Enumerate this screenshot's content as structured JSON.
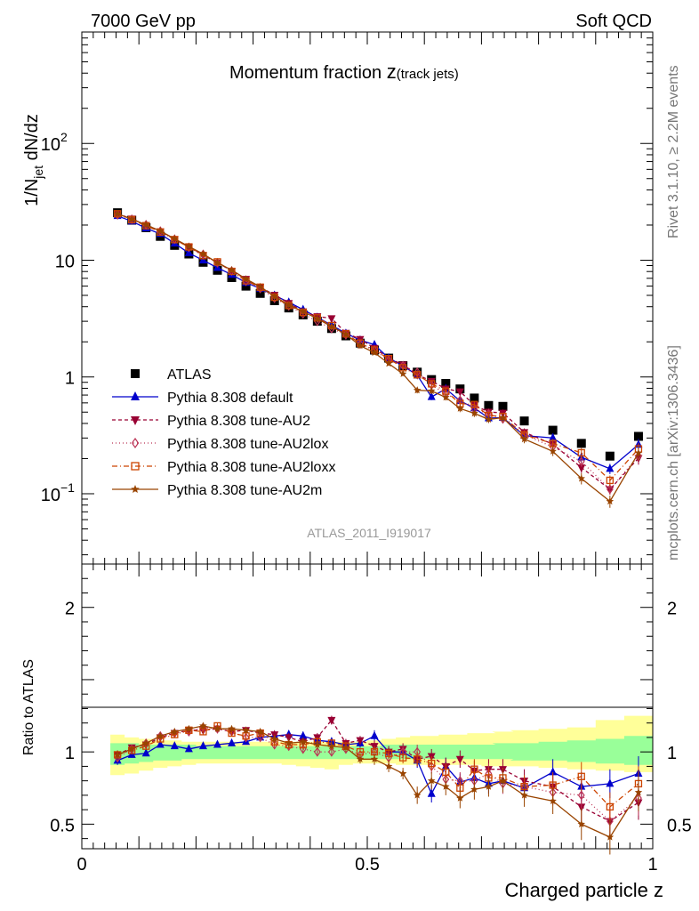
{
  "header": {
    "left": "7000 GeV pp",
    "right": "Soft QCD"
  },
  "side_text": {
    "rivet": "Rivet 3.1.10, ≥ 2.2M events",
    "mcplots": "mcplots.cern.ch [arXiv:1306.3436]"
  },
  "chart_data": {
    "type": "line",
    "title": "Momentum fraction z(track jets)",
    "title_main": "Momentum fraction ",
    "title_z": "z",
    "title_sub": "(track jets)",
    "analysis_id": "ATLAS_2011_I919017",
    "ylabel": {
      "base": "1/N",
      "sub": "jet",
      "rest": " dN/dz"
    },
    "xlabel": "Charged particle z",
    "ratio_ylabel": "Ratio to ATLAS",
    "top_ylim": [
      0.025,
      900
    ],
    "top_yscale": "log",
    "ratio_ylim": [
      0.33,
      2.3
    ],
    "xlim": [
      0,
      1
    ],
    "x_ticks": [
      {
        "v": 0,
        "t": "0"
      },
      {
        "v": 0.5,
        "t": "0.5"
      },
      {
        "v": 1,
        "t": "1"
      }
    ],
    "top_y_ticks": [
      {
        "v": 0.1,
        "t": "10",
        "sup": "−1"
      },
      {
        "v": 1,
        "t": "1",
        "sup": ""
      },
      {
        "v": 10,
        "t": "10",
        "sup": ""
      },
      {
        "v": 100,
        "t": "10",
        "sup": "2"
      }
    ],
    "ratio_y_ticks": [
      {
        "v": 0.5,
        "t": "0.5"
      },
      {
        "v": 1,
        "t": "1"
      },
      {
        "v": 2,
        "t": "2"
      }
    ],
    "legend_position": "lower-left",
    "x": [
      0.0625,
      0.0875,
      0.1125,
      0.1375,
      0.1625,
      0.1875,
      0.2125,
      0.2375,
      0.2625,
      0.2875,
      0.3125,
      0.3375,
      0.3625,
      0.3875,
      0.4125,
      0.4375,
      0.4625,
      0.4875,
      0.5125,
      0.5375,
      0.5625,
      0.5875,
      0.6125,
      0.6375,
      0.6625,
      0.6875,
      0.7125,
      0.7375,
      0.775,
      0.825,
      0.875,
      0.925,
      0.975
    ],
    "band_edges": [
      0.0625,
      0.0875,
      0.1125,
      0.1375,
      0.1625,
      0.1875,
      0.2125,
      0.2375,
      0.2625,
      0.2875,
      0.3125,
      0.3375,
      0.3625,
      0.3875,
      0.4125,
      0.4375,
      0.4625,
      0.4875,
      0.5125,
      0.5375,
      0.5625,
      0.5875,
      0.6125,
      0.6375,
      0.6625,
      0.6875,
      0.7125,
      0.7375,
      0.775,
      0.825,
      0.875,
      0.925,
      0.975
    ],
    "band_stat_lo": [
      0.91,
      0.92,
      0.93,
      0.94,
      0.94,
      0.95,
      0.95,
      0.95,
      0.95,
      0.95,
      0.95,
      0.95,
      0.95,
      0.95,
      0.95,
      0.95,
      0.95,
      0.95,
      0.95,
      0.95,
      0.95,
      0.95,
      0.95,
      0.95,
      0.95,
      0.95,
      0.95,
      0.95,
      0.94,
      0.94,
      0.93,
      0.92,
      0.91
    ],
    "band_stat_hi": [
      1.06,
      1.06,
      1.05,
      1.05,
      1.05,
      1.05,
      1.04,
      1.04,
      1.04,
      1.04,
      1.04,
      1.04,
      1.04,
      1.04,
      1.04,
      1.04,
      1.04,
      1.04,
      1.04,
      1.05,
      1.05,
      1.05,
      1.05,
      1.05,
      1.05,
      1.05,
      1.05,
      1.06,
      1.06,
      1.07,
      1.08,
      1.09,
      1.11
    ],
    "band_tot_lo": [
      0.84,
      0.85,
      0.87,
      0.89,
      0.9,
      0.91,
      0.92,
      0.92,
      0.92,
      0.92,
      0.92,
      0.92,
      0.91,
      0.9,
      0.89,
      0.88,
      0.91,
      0.92,
      0.92,
      0.92,
      0.91,
      0.91,
      0.91,
      0.91,
      0.91,
      0.91,
      0.9,
      0.9,
      0.9,
      0.89,
      0.88,
      0.87,
      0.86
    ],
    "band_tot_hi": [
      1.12,
      1.1,
      1.09,
      1.08,
      1.08,
      1.07,
      1.07,
      1.07,
      1.07,
      1.07,
      1.07,
      1.07,
      1.07,
      1.07,
      1.07,
      1.07,
      1.07,
      1.07,
      1.08,
      1.09,
      1.1,
      1.11,
      1.11,
      1.12,
      1.12,
      1.13,
      1.13,
      1.14,
      1.15,
      1.16,
      1.17,
      1.22,
      1.25
    ],
    "series": [
      {
        "name": "ATLAS",
        "color": "#000000",
        "marker": "square",
        "dash": "none",
        "values": [
          25.5,
          22,
          19,
          16,
          13.4,
          11.3,
          9.6,
          8.2,
          7.1,
          6.0,
          5.2,
          4.5,
          3.9,
          3.4,
          3.0,
          2.6,
          2.25,
          1.95,
          1.7,
          1.45,
          1.25,
          1.1,
          0.95,
          0.88,
          0.79,
          0.66,
          0.57,
          0.56,
          0.42,
          0.35,
          0.27,
          0.21,
          0.31
        ]
      },
      {
        "name": "Pythia 8.308 default",
        "color": "#0000cc",
        "marker": "triangle-up",
        "dash": "none",
        "ratio": [
          0.94,
          0.98,
          0.99,
          1.05,
          1.04,
          1.02,
          1.04,
          1.05,
          1.06,
          1.07,
          1.1,
          1.11,
          1.12,
          1.11,
          1.08,
          1.07,
          1.05,
          1.06,
          1.11,
          1.0,
          1.0,
          0.94,
          0.71,
          0.9,
          0.79,
          0.82,
          0.78,
          0.8,
          0.75,
          0.86,
          0.76,
          0.78,
          0.85
        ],
        "err": [
          0.03,
          0.02,
          0.02,
          0.02,
          0.02,
          0.02,
          0.02,
          0.02,
          0.02,
          0.02,
          0.02,
          0.03,
          0.03,
          0.03,
          0.03,
          0.03,
          0.03,
          0.03,
          0.04,
          0.04,
          0.04,
          0.05,
          0.06,
          0.06,
          0.06,
          0.07,
          0.07,
          0.07,
          0.08,
          0.09,
          0.1,
          0.1,
          0.12
        ]
      },
      {
        "name": "Pythia 8.308 tune-AU2",
        "color": "#990033",
        "marker": "triangle-down",
        "dash": "4,3",
        "ratio": [
          0.98,
          1.03,
          1.05,
          1.1,
          1.13,
          1.15,
          1.15,
          1.16,
          1.14,
          1.15,
          1.13,
          1.12,
          1.1,
          1.07,
          1.1,
          1.22,
          1.06,
          1.08,
          1.04,
          1.0,
          1.02,
          0.95,
          0.97,
          0.9,
          0.95,
          0.87,
          0.88,
          0.88,
          0.8,
          0.76,
          0.62,
          0.52,
          0.65
        ],
        "err": [
          0.03,
          0.02,
          0.02,
          0.02,
          0.02,
          0.02,
          0.02,
          0.02,
          0.02,
          0.02,
          0.02,
          0.03,
          0.03,
          0.03,
          0.03,
          0.03,
          0.03,
          0.03,
          0.04,
          0.04,
          0.04,
          0.05,
          0.05,
          0.06,
          0.06,
          0.07,
          0.07,
          0.07,
          0.08,
          0.09,
          0.1,
          0.1,
          0.12
        ]
      },
      {
        "name": "Pythia 8.308 tune-AU2lox",
        "color": "#bb3355",
        "marker": "diamond",
        "dash": "1,3",
        "ratio": [
          0.96,
          1.02,
          1.06,
          1.11,
          1.13,
          1.14,
          1.17,
          1.16,
          1.14,
          1.1,
          1.1,
          1.05,
          1.04,
          1.02,
          1.0,
          1.0,
          1.02,
          0.98,
          1.0,
          0.96,
          1.0,
          1.0,
          0.9,
          0.81,
          0.8,
          0.8,
          0.85,
          0.78,
          0.76,
          0.72,
          0.7,
          0.52,
          0.68
        ],
        "err": [
          0.03,
          0.02,
          0.02,
          0.02,
          0.02,
          0.02,
          0.02,
          0.02,
          0.02,
          0.02,
          0.02,
          0.03,
          0.03,
          0.03,
          0.03,
          0.03,
          0.03,
          0.03,
          0.04,
          0.04,
          0.04,
          0.05,
          0.05,
          0.06,
          0.06,
          0.07,
          0.07,
          0.07,
          0.08,
          0.09,
          0.1,
          0.1,
          0.12
        ]
      },
      {
        "name": "Pythia 8.308 tune-AU2loxx",
        "color": "#cc4400",
        "marker": "square-open",
        "dash": "6,3,1,3",
        "ratio": [
          0.98,
          1.01,
          1.04,
          1.09,
          1.12,
          1.15,
          1.14,
          1.18,
          1.13,
          1.11,
          1.13,
          1.07,
          1.05,
          1.05,
          1.07,
          1.06,
          1.04,
          1.0,
          1.0,
          0.99,
          0.96,
          0.95,
          0.92,
          0.86,
          0.75,
          0.88,
          0.82,
          0.82,
          0.76,
          0.77,
          0.83,
          0.62,
          0.78
        ],
        "err": [
          0.03,
          0.02,
          0.02,
          0.02,
          0.02,
          0.02,
          0.02,
          0.02,
          0.02,
          0.02,
          0.02,
          0.03,
          0.03,
          0.03,
          0.03,
          0.03,
          0.03,
          0.03,
          0.04,
          0.04,
          0.04,
          0.05,
          0.05,
          0.06,
          0.06,
          0.07,
          0.07,
          0.07,
          0.08,
          0.09,
          0.1,
          0.1,
          0.12
        ]
      },
      {
        "name": "Pythia 8.308 tune-AU2m",
        "color": "#994400",
        "marker": "star",
        "dash": "none",
        "ratio": [
          0.98,
          1.02,
          1.06,
          1.11,
          1.14,
          1.16,
          1.18,
          1.16,
          1.16,
          1.15,
          1.14,
          1.09,
          1.06,
          1.07,
          1.05,
          1.04,
          1.03,
          0.95,
          0.95,
          0.9,
          0.85,
          0.7,
          0.8,
          0.76,
          0.68,
          0.74,
          0.76,
          0.8,
          0.7,
          0.66,
          0.5,
          0.41,
          0.72
        ],
        "err": [
          0.03,
          0.02,
          0.02,
          0.02,
          0.02,
          0.02,
          0.02,
          0.02,
          0.02,
          0.02,
          0.02,
          0.03,
          0.03,
          0.03,
          0.03,
          0.03,
          0.03,
          0.03,
          0.04,
          0.04,
          0.04,
          0.06,
          0.06,
          0.06,
          0.07,
          0.07,
          0.07,
          0.08,
          0.08,
          0.09,
          0.11,
          0.12,
          0.13
        ]
      }
    ]
  }
}
